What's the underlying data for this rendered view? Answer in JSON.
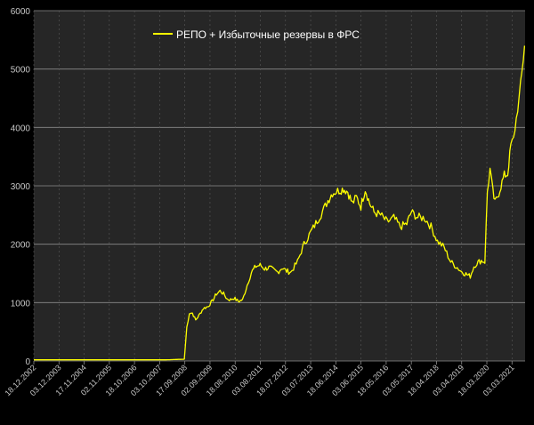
{
  "colors": {
    "page_background": "#000000",
    "plot_background": "#262626",
    "grid": "#8c8c8c",
    "axis_text": "#c8c8c8",
    "series": "#ffff00"
  },
  "chart_data": {
    "type": "line",
    "title": "",
    "xlabel": "",
    "ylabel": "",
    "ylim": [
      0,
      6000
    ],
    "yticks": [
      0,
      1000,
      2000,
      3000,
      4000,
      5000,
      6000
    ],
    "grid": true,
    "legend": {
      "position": "top-center",
      "entries": [
        "РЕПО + Избыточные резервы в ФРС"
      ]
    },
    "xtick_labels": [
      "18.12.2002",
      "03.12.2003",
      "17.11.2004",
      "02.11.2005",
      "18.10.2006",
      "03.10.2007",
      "17.09.2008",
      "02.09.2009",
      "18.08.2010",
      "03.08.2011",
      "18.07.2012",
      "03.07.2013",
      "18.06.2014",
      "03.06.2015",
      "18.05.2016",
      "03.05.2017",
      "18.04.2018",
      "03.04.2019",
      "18.03.2020",
      "03.03.2021"
    ],
    "x_end": "2021-09-01",
    "series": [
      {
        "name": "РЕПО + Избыточные резервы в ФРС",
        "color": "#ffff00",
        "x": [
          "2002-12-18",
          "2003-06-01",
          "2004-01-01",
          "2005-01-01",
          "2006-01-01",
          "2007-01-01",
          "2008-01-01",
          "2008-09-10",
          "2008-10-15",
          "2008-11-20",
          "2009-01-01",
          "2009-02-15",
          "2009-04-01",
          "2009-06-01",
          "2009-08-01",
          "2009-10-01",
          "2009-12-01",
          "2010-01-20",
          "2010-03-10",
          "2010-05-01",
          "2010-06-15",
          "2010-08-01",
          "2010-10-01",
          "2010-12-01",
          "2011-02-01",
          "2011-04-01",
          "2011-06-01",
          "2011-08-01",
          "2011-10-01",
          "2011-12-01",
          "2012-02-01",
          "2012-04-01",
          "2012-06-01",
          "2012-08-01",
          "2012-10-01",
          "2013-01-01",
          "2013-04-01",
          "2013-07-01",
          "2013-10-01",
          "2014-01-01",
          "2014-03-01",
          "2014-05-01",
          "2014-08-01",
          "2014-10-01",
          "2014-12-01",
          "2015-02-01",
          "2015-04-01",
          "2015-06-01",
          "2015-08-01",
          "2015-10-01",
          "2015-12-01",
          "2016-03-01",
          "2016-06-01",
          "2016-09-01",
          "2016-12-01",
          "2017-03-01",
          "2017-05-01",
          "2017-08-01",
          "2017-11-01",
          "2018-02-01",
          "2018-05-01",
          "2018-08-01",
          "2018-11-01",
          "2019-02-01",
          "2019-04-01",
          "2019-06-01",
          "2019-08-01",
          "2019-09-20",
          "2019-11-01",
          "2020-01-01",
          "2020-02-20",
          "2020-03-25",
          "2020-05-01",
          "2020-06-10",
          "2020-07-10",
          "2020-08-15",
          "2020-10-01",
          "2020-11-15",
          "2021-01-01",
          "2021-02-15",
          "2021-03-25",
          "2021-05-01",
          "2021-06-10",
          "2021-07-20",
          "2021-08-25"
        ],
        "y": [
          20,
          20,
          20,
          20,
          20,
          20,
          20,
          30,
          580,
          820,
          820,
          700,
          780,
          900,
          930,
          1020,
          1150,
          1200,
          1150,
          1060,
          1050,
          1080,
          1020,
          1050,
          1300,
          1520,
          1620,
          1640,
          1580,
          1600,
          1560,
          1520,
          1600,
          1540,
          1520,
          1700,
          2000,
          2200,
          2400,
          2600,
          2750,
          2880,
          2920,
          2950,
          2900,
          2700,
          2800,
          2650,
          2950,
          2700,
          2550,
          2500,
          2380,
          2450,
          2300,
          2350,
          2550,
          2460,
          2450,
          2300,
          2050,
          1950,
          1700,
          1600,
          1530,
          1490,
          1450,
          1620,
          1680,
          1720,
          1700,
          2900,
          3280,
          2900,
          2700,
          2820,
          3000,
          3180,
          3200,
          3700,
          3800,
          4150,
          4500,
          4950,
          5400
        ]
      }
    ]
  }
}
